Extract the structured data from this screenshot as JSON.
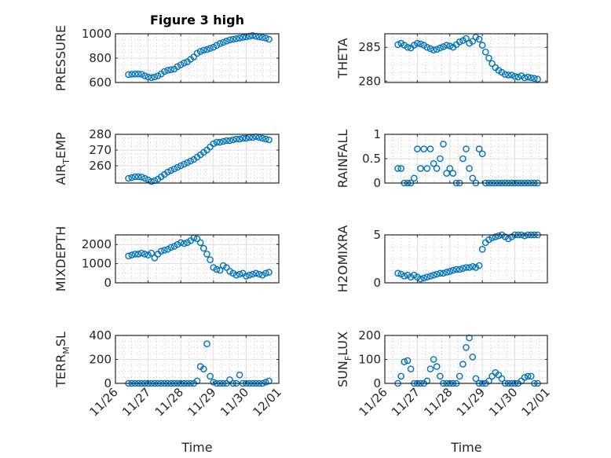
{
  "figure": {
    "title": "Figure 3 high",
    "xlabel": "Time",
    "marker_color": "#0072BD"
  },
  "chart_data": {
    "type": "scatter",
    "x_units": "days since 11/26 00:00",
    "x_tick_values": [
      0,
      1,
      2,
      3,
      4,
      5
    ],
    "x_tick_labels": [
      "11/26",
      "11/27",
      "11/28",
      "11/29",
      "11/30",
      "12/01"
    ],
    "xlim": [
      0,
      5
    ],
    "x": [
      0.4,
      0.5,
      0.6,
      0.7,
      0.8,
      0.9,
      1.0,
      1.1,
      1.2,
      1.3,
      1.4,
      1.5,
      1.6,
      1.7,
      1.8,
      1.9,
      2.0,
      2.1,
      2.2,
      2.3,
      2.4,
      2.5,
      2.6,
      2.7,
      2.8,
      2.9,
      3.0,
      3.1,
      3.2,
      3.3,
      3.4,
      3.5,
      3.6,
      3.7,
      3.8,
      3.9,
      4.0,
      4.1,
      4.2,
      4.3,
      4.4,
      4.5,
      4.6,
      4.7
    ],
    "panels": [
      {
        "ylabel": "PRESSURE",
        "ylim": [
          600,
          1000
        ],
        "yticks": [
          600,
          800,
          1000
        ],
        "ytick_labels": [
          "600",
          "800",
          "1000"
        ],
        "values": [
          665,
          668,
          670,
          670,
          668,
          655,
          645,
          640,
          645,
          655,
          670,
          690,
          700,
          705,
          710,
          730,
          745,
          760,
          770,
          790,
          810,
          840,
          855,
          865,
          870,
          880,
          890,
          905,
          920,
          930,
          940,
          950,
          955,
          960,
          965,
          970,
          975,
          980,
          985,
          980,
          975,
          970,
          965,
          955
        ]
      },
      {
        "ylabel": "THETA",
        "ylim": [
          279.8,
          287
        ],
        "yticks": [
          280,
          285
        ],
        "ytick_labels": [
          "280",
          "285"
        ],
        "values": [
          285.4,
          285.6,
          285.3,
          285.0,
          284.9,
          285.3,
          285.6,
          285.5,
          285.3,
          285.0,
          284.8,
          284.6,
          284.7,
          284.9,
          285.1,
          285.3,
          285.2,
          285.0,
          285.4,
          285.8,
          286.0,
          286.3,
          285.6,
          285.9,
          286.5,
          286.2,
          285.3,
          284.3,
          283.4,
          282.6,
          282.0,
          281.6,
          281.3,
          281.0,
          280.9,
          280.9,
          280.7,
          280.6,
          280.8,
          280.5,
          280.6,
          280.5,
          280.4,
          280.3
        ]
      },
      {
        "ylabel": "AIR_TEMP",
        "ylim": [
          249,
          280
        ],
        "yticks": [
          260,
          270,
          280
        ],
        "ytick_labels": [
          "260",
          "270",
          "280"
        ],
        "values": [
          252,
          252.5,
          253,
          253,
          252.8,
          252,
          251,
          250,
          250.5,
          251.5,
          253,
          254.5,
          256,
          257,
          258,
          259,
          260,
          261,
          262,
          263,
          264,
          265.5,
          267,
          268.5,
          270,
          272,
          274,
          275,
          275,
          275.5,
          276,
          276,
          276.5,
          277,
          277,
          277.5,
          277.5,
          278,
          278,
          278.5,
          278,
          277.5,
          277,
          276.5
        ]
      },
      {
        "ylabel": "RAINFALL",
        "ylim": [
          0,
          1
        ],
        "yticks": [
          0,
          0.5,
          1
        ],
        "ytick_labels": [
          "0",
          "0.5",
          "1"
        ],
        "values": [
          0.3,
          0.3,
          0,
          0,
          0,
          0.1,
          0.7,
          0.3,
          0.7,
          0.3,
          0.7,
          0.4,
          0.3,
          0.5,
          0.8,
          0.2,
          0.3,
          0.2,
          0,
          0,
          0.5,
          0.7,
          0.3,
          0.1,
          0,
          0.7,
          0.6,
          0,
          0,
          0,
          0,
          0,
          0,
          0,
          0,
          0,
          0,
          0,
          0,
          0,
          0,
          0,
          0,
          0
        ]
      },
      {
        "ylabel": "MIXDEPTH",
        "ylim": [
          0,
          2500
        ],
        "yticks": [
          0,
          1000,
          2000
        ],
        "ytick_labels": [
          "0",
          "1000",
          "2000"
        ],
        "values": [
          1400,
          1450,
          1500,
          1500,
          1550,
          1500,
          1450,
          1550,
          1300,
          1500,
          1650,
          1700,
          1750,
          1850,
          1900,
          2000,
          2100,
          2050,
          2100,
          2200,
          2350,
          2300,
          2100,
          1800,
          1500,
          1200,
          800,
          700,
          650,
          900,
          800,
          600,
          500,
          400,
          450,
          500,
          350,
          400,
          450,
          500,
          450,
          400,
          500,
          550
        ]
      },
      {
        "ylabel": "H2OMIXRA",
        "ylim": [
          0,
          5
        ],
        "yticks": [
          0,
          5
        ],
        "ytick_labels": [
          "0",
          "5"
        ],
        "values": [
          1.0,
          0.9,
          0.7,
          0.8,
          0.6,
          0.8,
          0.6,
          0.4,
          0.5,
          0.6,
          0.7,
          0.8,
          0.9,
          1.0,
          1.0,
          1.1,
          1.2,
          1.3,
          1.4,
          1.4,
          1.5,
          1.6,
          1.6,
          1.7,
          1.6,
          1.8,
          3.5,
          4.2,
          4.5,
          4.7,
          4.8,
          4.9,
          5.0,
          4.8,
          4.6,
          4.8,
          5.0,
          5.0,
          5.0,
          4.9,
          5.0,
          5.0,
          5.0,
          5.0
        ]
      },
      {
        "ylabel": "TERR_MSL",
        "ylim": [
          0,
          400
        ],
        "yticks": [
          0,
          200,
          400
        ],
        "ytick_labels": [
          "0",
          "200",
          "400"
        ],
        "values": [
          0,
          0,
          0,
          0,
          0,
          0,
          0,
          0,
          0,
          0,
          0,
          0,
          0,
          0,
          0,
          0,
          0,
          0,
          0,
          0,
          0,
          20,
          140,
          120,
          330,
          60,
          10,
          0,
          0,
          0,
          0,
          30,
          0,
          0,
          70,
          0,
          0,
          0,
          0,
          0,
          0,
          0,
          10,
          20
        ]
      },
      {
        "ylabel": "SUN_FLUX",
        "ylim": [
          0,
          200
        ],
        "yticks": [
          0,
          100,
          200
        ],
        "ytick_labels": [
          "0",
          "100",
          "200"
        ],
        "values": [
          0,
          30,
          90,
          95,
          60,
          0,
          0,
          0,
          0,
          10,
          60,
          100,
          70,
          30,
          0,
          0,
          0,
          0,
          0,
          30,
          80,
          150,
          190,
          110,
          20,
          0,
          0,
          0,
          10,
          30,
          45,
          35,
          20,
          0,
          0,
          0,
          0,
          0,
          10,
          25,
          30,
          30,
          0,
          0
        ]
      }
    ]
  }
}
